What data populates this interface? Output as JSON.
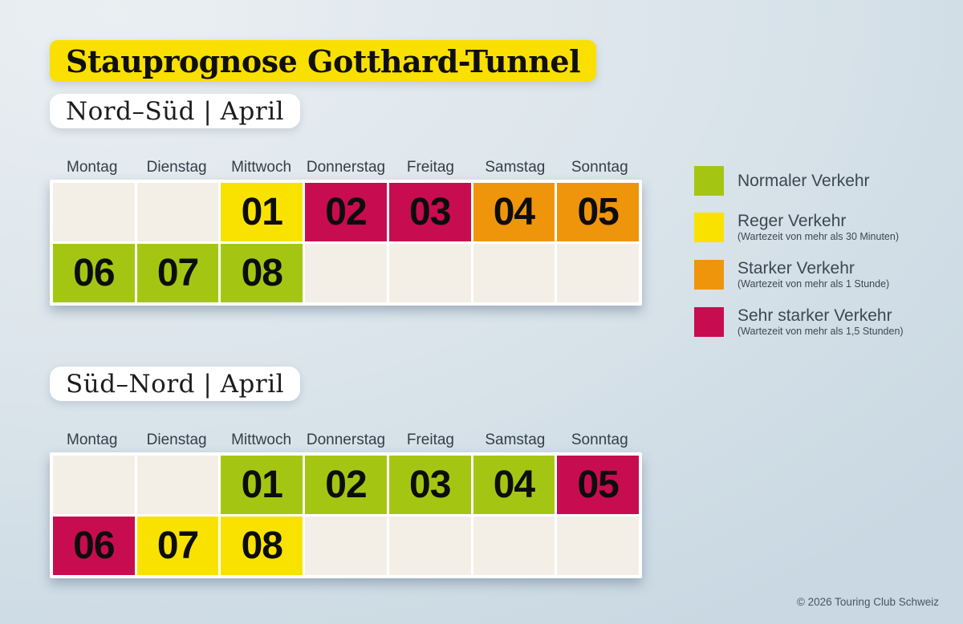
{
  "title": "Stauprognose Gotthard-Tunnel",
  "footer": "© 2026 Touring Club Schweiz",
  "colors": {
    "background_top": "#eaeff2",
    "background_bottom": "#c9d8e2",
    "title_highlight": "#f9e000",
    "heading_background": "#ffffff",
    "day_label_text": "#333e48",
    "levels": {
      "empty": "#f3efe6",
      "normal": "#a4c613",
      "reger": "#f9e200",
      "stark": "#ef950b",
      "sehr_stark": "#c70d4f"
    }
  },
  "legend": [
    {
      "label": "Normaler Verkehr",
      "sub": "",
      "level": "normal"
    },
    {
      "label": "Reger Verkehr",
      "sub": "(Wartezeit von mehr als 30 Minuten)",
      "level": "reger"
    },
    {
      "label": "Starker Verkehr",
      "sub": "(Wartezeit von mehr als 1 Stunde)",
      "level": "stark"
    },
    {
      "label": "Sehr starker Verkehr",
      "sub": "(Wartezeit von mehr als 1,5 Stunden)",
      "level": "sehr_stark"
    }
  ],
  "sections": [
    {
      "heading": "Nord–Süd | April",
      "days": [
        "Montag",
        "Dienstag",
        "Mittwoch",
        "Donnerstag",
        "Freitag",
        "Samstag",
        "Sonntag"
      ],
      "rows": [
        [
          {
            "n": "",
            "level": "empty"
          },
          {
            "n": "",
            "level": "empty"
          },
          {
            "n": "01",
            "level": "reger"
          },
          {
            "n": "02",
            "level": "sehr_stark"
          },
          {
            "n": "03",
            "level": "sehr_stark"
          },
          {
            "n": "04",
            "level": "stark"
          },
          {
            "n": "05",
            "level": "stark"
          }
        ],
        [
          {
            "n": "06",
            "level": "normal"
          },
          {
            "n": "07",
            "level": "normal"
          },
          {
            "n": "08",
            "level": "normal"
          },
          {
            "n": "",
            "level": "empty"
          },
          {
            "n": "",
            "level": "empty"
          },
          {
            "n": "",
            "level": "empty"
          },
          {
            "n": "",
            "level": "empty"
          }
        ]
      ]
    },
    {
      "heading": "Süd–Nord | April",
      "days": [
        "Montag",
        "Dienstag",
        "Mittwoch",
        "Donnerstag",
        "Freitag",
        "Samstag",
        "Sonntag"
      ],
      "rows": [
        [
          {
            "n": "",
            "level": "empty"
          },
          {
            "n": "",
            "level": "empty"
          },
          {
            "n": "01",
            "level": "normal"
          },
          {
            "n": "02",
            "level": "normal"
          },
          {
            "n": "03",
            "level": "normal"
          },
          {
            "n": "04",
            "level": "normal"
          },
          {
            "n": "05",
            "level": "sehr_stark"
          }
        ],
        [
          {
            "n": "06",
            "level": "sehr_stark"
          },
          {
            "n": "07",
            "level": "reger"
          },
          {
            "n": "08",
            "level": "reger"
          },
          {
            "n": "",
            "level": "empty"
          },
          {
            "n": "",
            "level": "empty"
          },
          {
            "n": "",
            "level": "empty"
          },
          {
            "n": "",
            "level": "empty"
          }
        ]
      ]
    }
  ],
  "chart_data": [
    {
      "type": "heatmap",
      "title": "Nord–Süd | April",
      "x": [
        "Montag",
        "Dienstag",
        "Mittwoch",
        "Donnerstag",
        "Freitag",
        "Samstag",
        "Sonntag"
      ],
      "legend_position": "right",
      "categories_legend": [
        "Normaler Verkehr",
        "Reger Verkehr (Wartezeit von mehr als 30 Minuten)",
        "Starker Verkehr (Wartezeit von mehr als 1 Stunde)",
        "Sehr starker Verkehr (Wartezeit von mehr als 1,5 Stunden)"
      ],
      "values": [
        {
          "day": "01",
          "weekday": "Mittwoch",
          "level": "Reger Verkehr"
        },
        {
          "day": "02",
          "weekday": "Donnerstag",
          "level": "Sehr starker Verkehr"
        },
        {
          "day": "03",
          "weekday": "Freitag",
          "level": "Sehr starker Verkehr"
        },
        {
          "day": "04",
          "weekday": "Samstag",
          "level": "Starker Verkehr"
        },
        {
          "day": "05",
          "weekday": "Sonntag",
          "level": "Starker Verkehr"
        },
        {
          "day": "06",
          "weekday": "Montag",
          "level": "Normaler Verkehr"
        },
        {
          "day": "07",
          "weekday": "Dienstag",
          "level": "Normaler Verkehr"
        },
        {
          "day": "08",
          "weekday": "Mittwoch",
          "level": "Normaler Verkehr"
        }
      ]
    },
    {
      "type": "heatmap",
      "title": "Süd–Nord | April",
      "x": [
        "Montag",
        "Dienstag",
        "Mittwoch",
        "Donnerstag",
        "Freitag",
        "Samstag",
        "Sonntag"
      ],
      "values": [
        {
          "day": "01",
          "weekday": "Mittwoch",
          "level": "Normaler Verkehr"
        },
        {
          "day": "02",
          "weekday": "Donnerstag",
          "level": "Normaler Verkehr"
        },
        {
          "day": "03",
          "weekday": "Freitag",
          "level": "Normaler Verkehr"
        },
        {
          "day": "04",
          "weekday": "Samstag",
          "level": "Normaler Verkehr"
        },
        {
          "day": "05",
          "weekday": "Sonntag",
          "level": "Sehr starker Verkehr"
        },
        {
          "day": "06",
          "weekday": "Montag",
          "level": "Sehr starker Verkehr"
        },
        {
          "day": "07",
          "weekday": "Dienstag",
          "level": "Reger Verkehr"
        },
        {
          "day": "08",
          "weekday": "Mittwoch",
          "level": "Reger Verkehr"
        }
      ]
    }
  ]
}
